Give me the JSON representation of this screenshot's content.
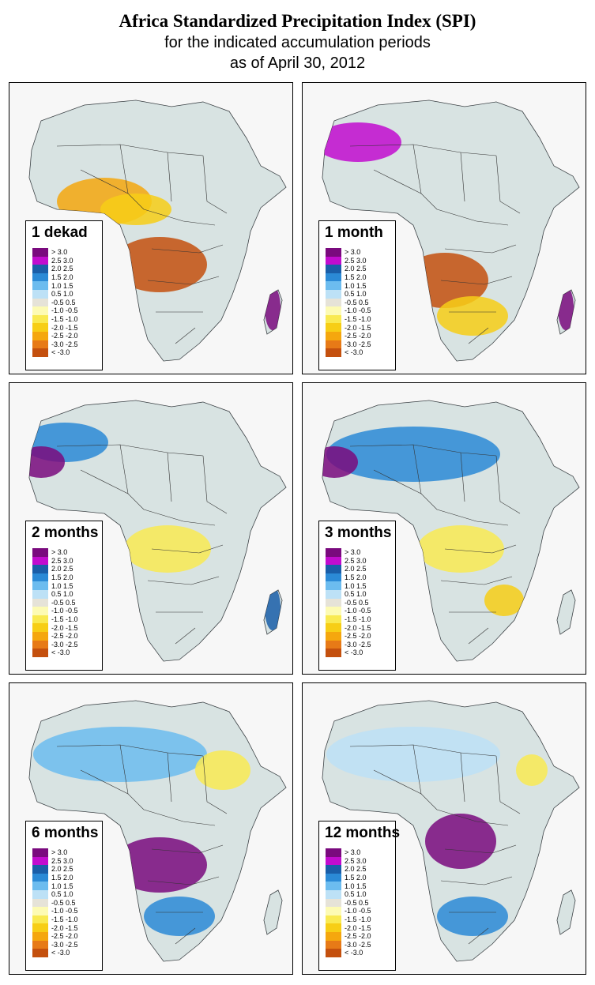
{
  "title": "Africa Standardized Precipitation Index (SPI)",
  "subtitle_line1": "for the indicated accumulation periods",
  "subtitle_line2": "as of April 30, 2012",
  "legend_classes": [
    {
      "label": "> 3.0",
      "color": "#7a0a7e"
    },
    {
      "label": "2.5  3.0",
      "color": "#c20ccf"
    },
    {
      "label": "2.0  2.5",
      "color": "#1a5ea8"
    },
    {
      "label": "1.5  2.0",
      "color": "#2b8ad6"
    },
    {
      "label": "1.0  1.5",
      "color": "#6cbcef"
    },
    {
      "label": "0.5  1.0",
      "color": "#bde1f6"
    },
    {
      "label": "-0.5  0.5",
      "color": "#e6e3d8"
    },
    {
      "label": "-1.0 -0.5",
      "color": "#fdfbb4"
    },
    {
      "label": "-1.5 -1.0",
      "color": "#f9ea52"
    },
    {
      "label": "-2.0 -1.5",
      "color": "#f7ce16"
    },
    {
      "label": "-2.5 -2.0",
      "color": "#f5a70e"
    },
    {
      "label": "-3.0 -2.5",
      "color": "#e77a17"
    },
    {
      "label": "< -3.0",
      "color": "#c4500e"
    }
  ],
  "panels": [
    {
      "label": "1 dekad",
      "dominant_class": "dry",
      "patches": [
        {
          "cls": 10,
          "region": "central-west"
        },
        {
          "cls": 12,
          "region": "angola-congo"
        },
        {
          "cls": 9,
          "region": "nigeria"
        },
        {
          "cls": 0,
          "region": "madagascar-east"
        }
      ]
    },
    {
      "label": "1 month",
      "dominant_class": "dry-south",
      "patches": [
        {
          "cls": 12,
          "region": "angola-zambia"
        },
        {
          "cls": 9,
          "region": "southern"
        },
        {
          "cls": 0,
          "region": "madagascar"
        },
        {
          "cls": 1,
          "region": "northwest"
        }
      ]
    },
    {
      "label": "2 months",
      "dominant_class": "wet-sahara",
      "patches": [
        {
          "cls": 3,
          "region": "northwest"
        },
        {
          "cls": 0,
          "region": "mauritania"
        },
        {
          "cls": 8,
          "region": "central"
        },
        {
          "cls": 2,
          "region": "madagascar"
        }
      ]
    },
    {
      "label": "3 months",
      "dominant_class": "wet-sahara",
      "patches": [
        {
          "cls": 3,
          "region": "sahara"
        },
        {
          "cls": 0,
          "region": "mauritania"
        },
        {
          "cls": 8,
          "region": "central"
        },
        {
          "cls": 9,
          "region": "mozambique"
        }
      ]
    },
    {
      "label": "6 months",
      "dominant_class": "wet",
      "patches": [
        {
          "cls": 4,
          "region": "sahara"
        },
        {
          "cls": 0,
          "region": "angola-congo"
        },
        {
          "cls": 8,
          "region": "egypt-libya"
        },
        {
          "cls": 3,
          "region": "southern"
        }
      ]
    },
    {
      "label": "12 months",
      "dominant_class": "wet",
      "patches": [
        {
          "cls": 5,
          "region": "sahara"
        },
        {
          "cls": 0,
          "region": "congo"
        },
        {
          "cls": 3,
          "region": "southern"
        },
        {
          "cls": 8,
          "region": "egypt"
        }
      ]
    }
  ]
}
